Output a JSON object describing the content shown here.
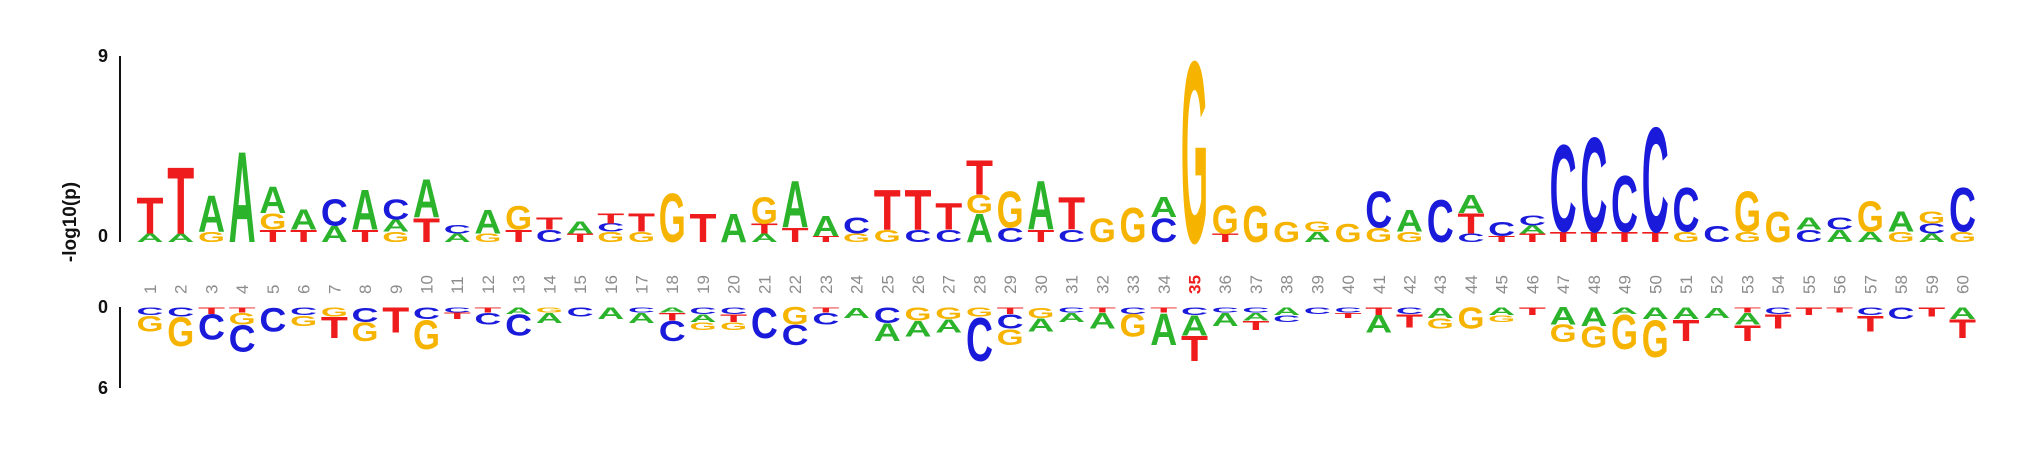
{
  "chart_data": {
    "type": "sequence-logo",
    "ylabel": "-log10(p)",
    "top_axis_ticks": [
      "9",
      "0"
    ],
    "bottom_axis_ticks": [
      "0",
      "6"
    ],
    "top_ylim": [
      0,
      9
    ],
    "bottom_ylim": [
      0,
      6
    ],
    "highlight_position": 35,
    "positions": [
      1,
      2,
      3,
      4,
      5,
      6,
      7,
      8,
      9,
      10,
      11,
      12,
      13,
      14,
      15,
      16,
      17,
      18,
      19,
      20,
      21,
      22,
      23,
      24,
      25,
      26,
      27,
      28,
      29,
      30,
      31,
      32,
      33,
      34,
      35,
      36,
      37,
      38,
      39,
      40,
      41,
      42,
      43,
      44,
      45,
      46,
      47,
      48,
      49,
      50,
      51,
      52,
      53,
      54,
      55,
      56,
      57,
      58,
      59,
      60
    ],
    "letter_colors": {
      "A": "#2bb32b",
      "C": "#1a1adb",
      "G": "#f6b400",
      "T": "#ee1c1c"
    },
    "position_label_color": "#8c8c8c",
    "highlight_color": "#ee1c1c",
    "enriched": [
      [
        [
          "A",
          0.4
        ],
        [
          "T",
          1.8
        ]
      ],
      [
        [
          "A",
          0.4
        ],
        [
          "T",
          3.3
        ]
      ],
      [
        [
          "G",
          0.5
        ],
        [
          "A",
          1.8
        ]
      ],
      [
        [
          "A",
          4.5
        ]
      ],
      [
        [
          "T",
          0.6
        ],
        [
          "G",
          0.8
        ],
        [
          "A",
          1.3
        ]
      ],
      [
        [
          "T",
          0.6
        ],
        [
          "A",
          1.0
        ]
      ],
      [
        [
          "A",
          0.8
        ],
        [
          "C",
          1.3
        ]
      ],
      [
        [
          "T",
          0.6
        ],
        [
          "A",
          2.0
        ]
      ],
      [
        [
          "G",
          0.5
        ],
        [
          "A",
          0.6
        ],
        [
          "C",
          1.0
        ]
      ],
      [
        [
          "T",
          1.2
        ],
        [
          "A",
          1.9
        ]
      ],
      [
        [
          "A",
          0.4
        ],
        [
          "C",
          0.4
        ]
      ],
      [
        [
          "G",
          0.4
        ],
        [
          "A",
          1.2
        ]
      ],
      [
        [
          "T",
          0.6
        ],
        [
          "G",
          1.2
        ]
      ],
      [
        [
          "C",
          0.6
        ],
        [
          "T",
          0.6
        ]
      ],
      [
        [
          "T",
          0.4
        ],
        [
          "A",
          0.6
        ]
      ],
      [
        [
          "G",
          0.5
        ],
        [
          "C",
          0.4
        ],
        [
          "T",
          0.5
        ]
      ],
      [
        [
          "G",
          0.5
        ],
        [
          "T",
          0.9
        ]
      ],
      [
        [
          "G",
          2.4
        ]
      ],
      [
        [
          "T",
          1.4
        ]
      ],
      [
        [
          "A",
          1.4
        ]
      ],
      [
        [
          "A",
          0.4
        ],
        [
          "T",
          0.5
        ],
        [
          "G",
          1.3
        ]
      ],
      [
        [
          "T",
          0.7
        ],
        [
          "A",
          2.3
        ]
      ],
      [
        [
          "T",
          0.3
        ],
        [
          "A",
          1.0
        ]
      ],
      [
        [
          "G",
          0.4
        ],
        [
          "C",
          0.8
        ]
      ],
      [
        [
          "G",
          0.6
        ],
        [
          "T",
          2.0
        ]
      ],
      [
        [
          "C",
          0.6
        ],
        [
          "T",
          2.0
        ]
      ],
      [
        [
          "C",
          0.6
        ],
        [
          "T",
          1.3
        ]
      ],
      [
        [
          "A",
          1.4
        ],
        [
          "G",
          0.9
        ],
        [
          "T",
          1.7
        ]
      ],
      [
        [
          "C",
          0.7
        ],
        [
          "G",
          1.8
        ]
      ],
      [
        [
          "T",
          0.6
        ],
        [
          "A",
          2.4
        ]
      ],
      [
        [
          "C",
          0.6
        ],
        [
          "T",
          1.6
        ]
      ],
      [
        [
          "G",
          1.2
        ]
      ],
      [
        [
          "G",
          1.7
        ]
      ],
      [
        [
          "C",
          1.2
        ],
        [
          "A",
          1.0
        ]
      ],
      [
        [
          "G",
          9.0
        ]
      ],
      [
        [
          "T",
          0.4
        ],
        [
          "G",
          1.4
        ]
      ],
      [
        [
          "G",
          1.8
        ]
      ],
      [
        [
          "G",
          1.0
        ]
      ],
      [
        [
          "A",
          0.5
        ],
        [
          "G",
          0.5
        ]
      ],
      [
        [
          "G",
          0.9
        ]
      ],
      [
        [
          "G",
          0.7
        ],
        [
          "C",
          1.8
        ]
      ],
      [
        [
          "G",
          0.5
        ],
        [
          "A",
          1.1
        ]
      ],
      [
        [
          "C",
          2.1
        ]
      ],
      [
        [
          "C",
          0.4
        ],
        [
          "T",
          1.0
        ],
        [
          "A",
          0.9
        ]
      ],
      [
        [
          "T",
          0.3
        ],
        [
          "C",
          0.7
        ]
      ],
      [
        [
          "T",
          0.4
        ],
        [
          "A",
          0.4
        ],
        [
          "C",
          0.5
        ]
      ],
      [
        [
          "T",
          0.5
        ],
        [
          "C",
          4.3
        ]
      ],
      [
        [
          "T",
          0.5
        ],
        [
          "C",
          4.7
        ]
      ],
      [
        [
          "T",
          0.5
        ],
        [
          "C",
          2.8
        ]
      ],
      [
        [
          "T",
          0.5
        ],
        [
          "C",
          5.2
        ]
      ],
      [
        [
          "G",
          0.5
        ],
        [
          "C",
          2.2
        ]
      ],
      [
        [
          "C",
          0.8
        ]
      ],
      [
        [
          "G",
          0.5
        ],
        [
          "G",
          2.0
        ]
      ],
      [
        [
          "G",
          1.5
        ]
      ],
      [
        [
          "C",
          0.6
        ],
        [
          "A",
          0.6
        ]
      ],
      [
        [
          "A",
          0.6
        ],
        [
          "C",
          0.6
        ]
      ],
      [
        [
          "A",
          0.5
        ],
        [
          "G",
          1.5
        ]
      ],
      [
        [
          "G",
          0.5
        ],
        [
          "A",
          1.0
        ]
      ],
      [
        [
          "A",
          0.4
        ],
        [
          "C",
          0.5
        ],
        [
          "G",
          0.6
        ]
      ],
      [
        [
          "G",
          0.5
        ],
        [
          "C",
          2.2
        ]
      ]
    ],
    "depleted": [
      [
        [
          "C",
          0.6
        ],
        [
          "G",
          1.2
        ]
      ],
      [
        [
          "C",
          0.7
        ],
        [
          "G",
          2.2
        ]
      ],
      [
        [
          "T",
          0.5
        ],
        [
          "C",
          1.9
        ]
      ],
      [
        [
          "T",
          0.4
        ],
        [
          "G",
          0.9
        ],
        [
          "C",
          2.0
        ]
      ],
      [
        [
          "C",
          1.8
        ]
      ],
      [
        [
          "C",
          0.6
        ],
        [
          "G",
          0.8
        ]
      ],
      [
        [
          "G",
          0.7
        ],
        [
          "T",
          1.6
        ]
      ],
      [
        [
          "C",
          1.1
        ],
        [
          "G",
          1.4
        ]
      ],
      [
        [
          "T",
          1.9
        ]
      ],
      [
        [
          "C",
          0.9
        ],
        [
          "G",
          2.2
        ]
      ],
      [
        [
          "C",
          0.4
        ],
        [
          "T",
          0.5
        ]
      ],
      [
        [
          "T",
          0.4
        ],
        [
          "C",
          0.9
        ]
      ],
      [
        [
          "A",
          0.5
        ],
        [
          "C",
          1.6
        ]
      ],
      [
        [
          "G",
          0.4
        ],
        [
          "A",
          0.8
        ]
      ],
      [
        [
          "C",
          0.7
        ]
      ],
      [
        [
          "A",
          0.9
        ]
      ],
      [
        [
          "C",
          0.4
        ],
        [
          "A",
          0.8
        ]
      ],
      [
        [
          "A",
          0.4
        ],
        [
          "T",
          0.6
        ],
        [
          "C",
          1.5
        ]
      ],
      [
        [
          "C",
          0.5
        ],
        [
          "A",
          0.6
        ],
        [
          "G",
          0.6
        ]
      ],
      [
        [
          "C",
          0.5
        ],
        [
          "T",
          0.6
        ],
        [
          "G",
          0.6
        ]
      ],
      [
        [
          "C",
          2.3
        ]
      ],
      [
        [
          "G",
          1.3
        ],
        [
          "C",
          1.5
        ]
      ],
      [
        [
          "T",
          0.4
        ],
        [
          "C",
          0.9
        ]
      ],
      [
        [
          "A",
          0.8
        ]
      ],
      [
        [
          "C",
          1.2
        ],
        [
          "A",
          1.3
        ]
      ],
      [
        [
          "G",
          1.0
        ],
        [
          "A",
          1.2
        ]
      ],
      [
        [
          "G",
          0.9
        ],
        [
          "A",
          1.0
        ]
      ],
      [
        [
          "G",
          0.7
        ],
        [
          "C",
          3.3
        ]
      ],
      [
        [
          "T",
          0.5
        ],
        [
          "C",
          1.1
        ],
        [
          "G",
          1.2
        ]
      ],
      [
        [
          "G",
          0.8
        ],
        [
          "A",
          1.0
        ]
      ],
      [
        [
          "C",
          0.4
        ],
        [
          "A",
          0.7
        ]
      ],
      [
        [
          "T",
          0.4
        ],
        [
          "A",
          1.2
        ]
      ],
      [
        [
          "C",
          0.5
        ],
        [
          "G",
          1.7
        ]
      ],
      [
        [
          "T",
          0.4
        ],
        [
          "A",
          2.4
        ]
      ],
      [
        [
          "C",
          0.6
        ],
        [
          "A",
          1.5
        ],
        [
          "T",
          1.9
        ]
      ],
      [
        [
          "C",
          0.4
        ],
        [
          "A",
          1.0
        ]
      ],
      [
        [
          "C",
          0.4
        ],
        [
          "A",
          0.6
        ],
        [
          "T",
          0.7
        ]
      ],
      [
        [
          "A",
          0.6
        ],
        [
          "C",
          0.5
        ]
      ],
      [
        [
          "C",
          0.5
        ]
      ],
      [
        [
          "C",
          0.4
        ],
        [
          "T",
          0.4
        ]
      ],
      [
        [
          "T",
          0.6
        ],
        [
          "A",
          1.3
        ]
      ],
      [
        [
          "C",
          0.5
        ],
        [
          "T",
          1.0
        ]
      ],
      [
        [
          "A",
          0.8
        ],
        [
          "G",
          0.8
        ]
      ],
      [
        [
          "G",
          1.6
        ]
      ],
      [
        [
          "A",
          0.6
        ],
        [
          "G",
          0.5
        ]
      ],
      [
        [
          "T",
          0.6
        ]
      ],
      [
        [
          "A",
          1.3
        ],
        [
          "G",
          1.3
        ]
      ],
      [
        [
          "A",
          1.4
        ],
        [
          "G",
          1.6
        ]
      ],
      [
        [
          "A",
          0.5
        ],
        [
          "G",
          2.6
        ]
      ],
      [
        [
          "A",
          0.9
        ],
        [
          "G",
          2.8
        ]
      ],
      [
        [
          "A",
          0.9
        ],
        [
          "T",
          1.6
        ]
      ],
      [
        [
          "A",
          0.8
        ]
      ],
      [
        [
          "T",
          0.4
        ],
        [
          "A",
          0.9
        ],
        [
          "T",
          1.2
        ]
      ],
      [
        [
          "C",
          0.5
        ],
        [
          "T",
          1.1
        ]
      ],
      [
        [
          "T",
          0.6
        ]
      ],
      [
        [
          "T",
          0.4
        ]
      ],
      [
        [
          "C",
          0.6
        ],
        [
          "T",
          1.2
        ]
      ],
      [
        [
          "C",
          0.9
        ]
      ],
      [
        [
          "T",
          0.7
        ]
      ],
      [
        [
          "A",
          0.9
        ],
        [
          "T",
          1.4
        ]
      ]
    ]
  }
}
